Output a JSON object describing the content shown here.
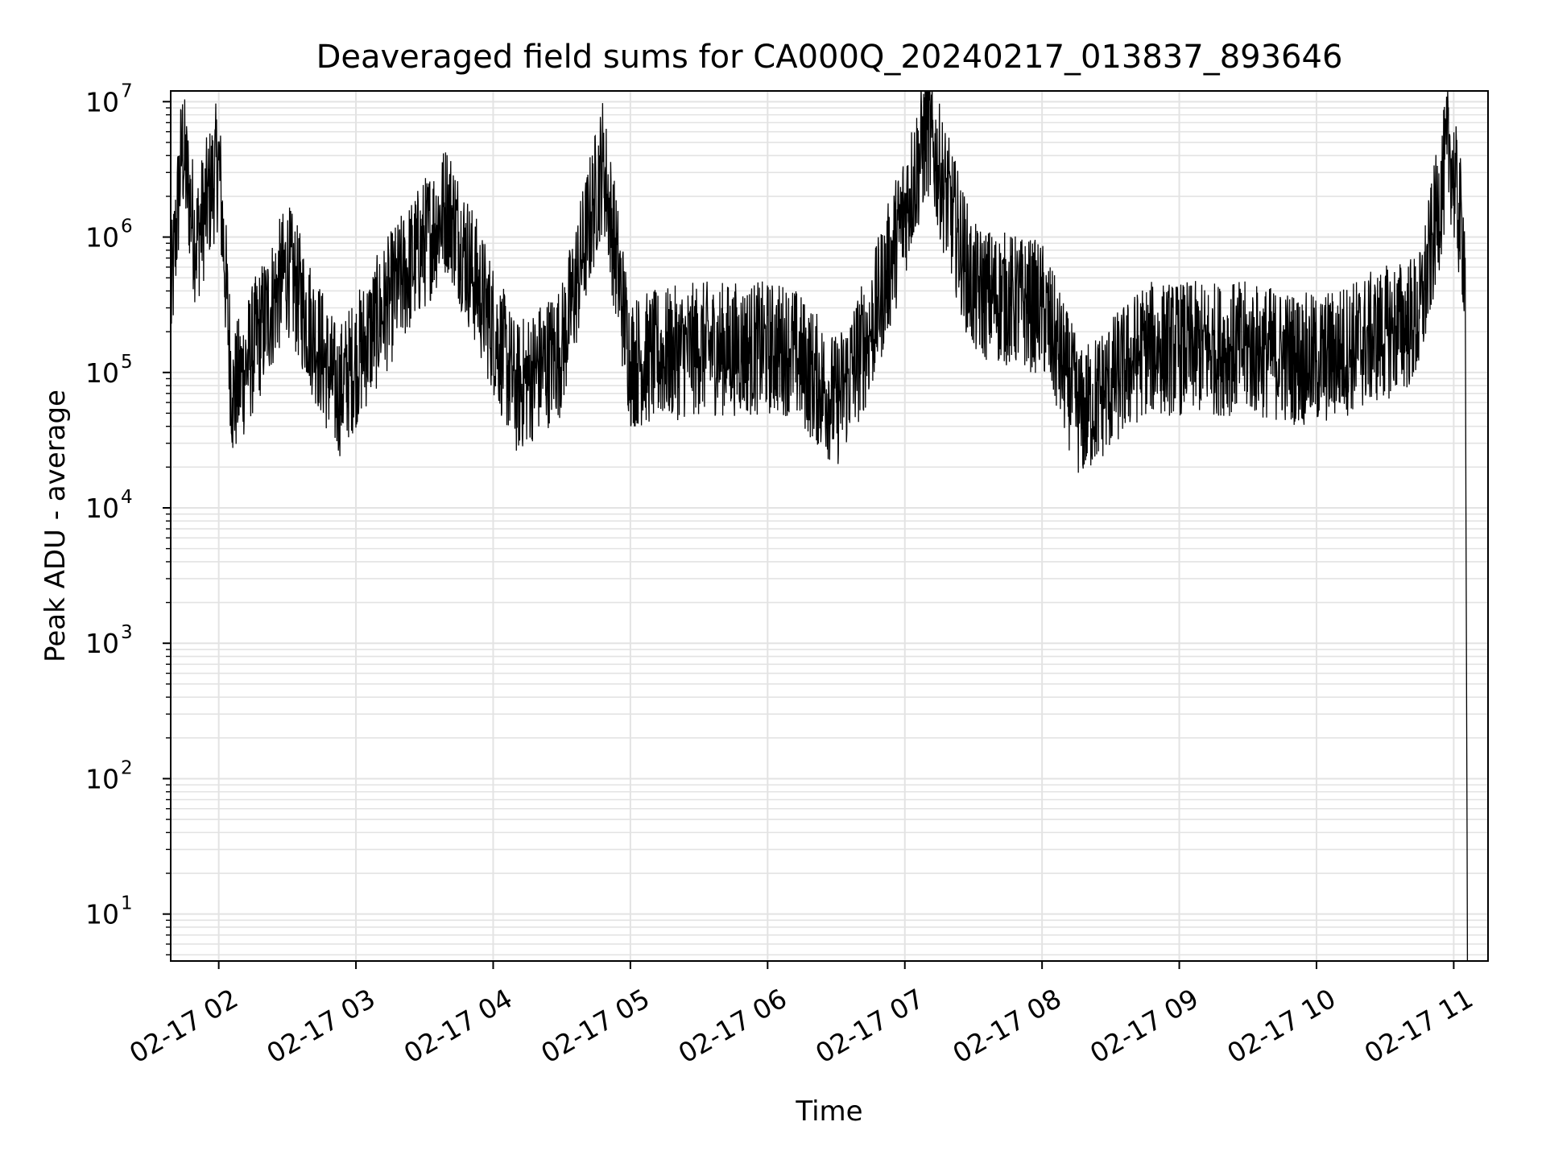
{
  "chart_data": {
    "type": "line",
    "title": "Deaveraged field sums for CA000Q_20240217_013837_893646",
    "xlabel": "Time",
    "ylabel": "Peak ADU - average",
    "y_scale": "log",
    "ylim": [
      4.5,
      12000000
    ],
    "xlim": [
      "2024-02-17 01:39",
      "2024-02-17 11:15"
    ],
    "grid": true,
    "line_color": "#000000",
    "grid_color": "#e3e3e3",
    "x_ticks": [
      {
        "t": "2024-02-17 02:00",
        "label": "02-17 02"
      },
      {
        "t": "2024-02-17 03:00",
        "label": "02-17 03"
      },
      {
        "t": "2024-02-17 04:00",
        "label": "02-17 04"
      },
      {
        "t": "2024-02-17 05:00",
        "label": "02-17 05"
      },
      {
        "t": "2024-02-17 06:00",
        "label": "02-17 06"
      },
      {
        "t": "2024-02-17 07:00",
        "label": "02-17 07"
      },
      {
        "t": "2024-02-17 08:00",
        "label": "02-17 08"
      },
      {
        "t": "2024-02-17 09:00",
        "label": "02-17 09"
      },
      {
        "t": "2024-02-17 10:00",
        "label": "02-17 10"
      },
      {
        "t": "2024-02-17 11:00",
        "label": "02-17 11"
      }
    ],
    "y_ticks": [
      {
        "value": 10,
        "base": "10",
        "exp": "1"
      },
      {
        "value": 100,
        "base": "10",
        "exp": "2"
      },
      {
        "value": 1000,
        "base": "10",
        "exp": "3"
      },
      {
        "value": 10000,
        "base": "10",
        "exp": "4"
      },
      {
        "value": 100000,
        "base": "10",
        "exp": "5"
      },
      {
        "value": 1000000,
        "base": "10",
        "exp": "6"
      },
      {
        "value": 10000000,
        "base": "10",
        "exp": "7"
      }
    ],
    "series": [
      {
        "values": [
          {
            "t": "2024-02-17 01:39",
            "y": 300000
          },
          {
            "t": "2024-02-17 01:44",
            "y": 4800000
          },
          {
            "t": "2024-02-17 01:50",
            "y": 900000
          },
          {
            "t": "2024-02-17 02:00",
            "y": 3700000
          },
          {
            "t": "2024-02-17 02:06",
            "y": 65000
          },
          {
            "t": "2024-02-17 02:30",
            "y": 600000
          },
          {
            "t": "2024-02-17 02:52",
            "y": 70000
          },
          {
            "t": "2024-02-17 03:15",
            "y": 350000
          },
          {
            "t": "2024-02-17 03:40",
            "y": 1700000
          },
          {
            "t": "2024-02-17 04:10",
            "y": 75000
          },
          {
            "t": "2024-02-17 04:30",
            "y": 150000
          },
          {
            "t": "2024-02-17 04:48",
            "y": 3600000
          },
          {
            "t": "2024-02-17 05:00",
            "y": 120000
          },
          {
            "t": "2024-02-17 05:30",
            "y": 150000
          },
          {
            "t": "2024-02-17 06:10",
            "y": 150000
          },
          {
            "t": "2024-02-17 06:30",
            "y": 60000
          },
          {
            "t": "2024-02-17 06:45",
            "y": 200000
          },
          {
            "t": "2024-02-17 07:10",
            "y": 6200000
          },
          {
            "t": "2024-02-17 07:30",
            "y": 400000
          },
          {
            "t": "2024-02-17 08:00",
            "y": 300000
          },
          {
            "t": "2024-02-17 08:17",
            "y": 48000
          },
          {
            "t": "2024-02-17 08:45",
            "y": 150000
          },
          {
            "t": "2024-02-17 09:30",
            "y": 150000
          },
          {
            "t": "2024-02-17 10:00",
            "y": 120000
          },
          {
            "t": "2024-02-17 10:45",
            "y": 250000
          },
          {
            "t": "2024-02-17 10:58",
            "y": 4800000
          },
          {
            "t": "2024-02-17 11:05",
            "y": 700000
          },
          {
            "t": "2024-02-17 11:06",
            "y": 5
          },
          {
            "t": "2024-02-17 11:06",
            "y": 4.5
          }
        ]
      }
    ]
  }
}
